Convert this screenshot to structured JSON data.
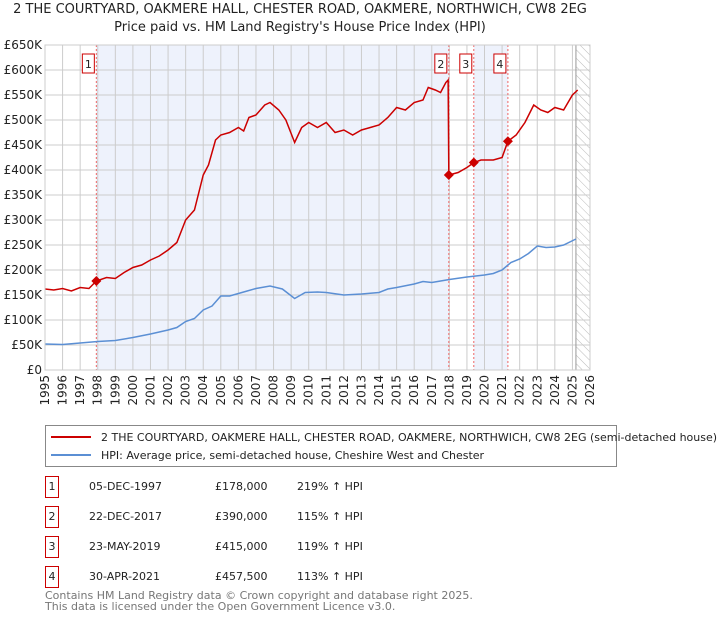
{
  "title_line1": "2 THE COURTYARD, OAKMERE HALL, CHESTER ROAD, OAKMERE, NORTHWICH, CW8 2EG",
  "title_line2": "Price paid vs. HM Land Registry's House Price Index (HPI)",
  "colors": {
    "price": "#cc0000",
    "hpi": "#5b8fd4",
    "shade": "#eef2fc",
    "grid": "#cccccc"
  },
  "chart_data": {
    "type": "line",
    "xlim": [
      1995,
      2026
    ],
    "ylim": [
      0,
      650000
    ],
    "x_ticks": [
      1995,
      1996,
      1997,
      1998,
      1999,
      2000,
      2001,
      2002,
      2003,
      2004,
      2005,
      2006,
      2007,
      2008,
      2009,
      2010,
      2011,
      2012,
      2013,
      2014,
      2015,
      2016,
      2017,
      2018,
      2019,
      2020,
      2021,
      2022,
      2023,
      2024,
      2025,
      2026
    ],
    "y_ticks": [
      {
        "v": 0,
        "label": "£0"
      },
      {
        "v": 50000,
        "label": "£50K"
      },
      {
        "v": 100000,
        "label": "£100K"
      },
      {
        "v": 150000,
        "label": "£150K"
      },
      {
        "v": 200000,
        "label": "£200K"
      },
      {
        "v": 250000,
        "label": "£250K"
      },
      {
        "v": 300000,
        "label": "£300K"
      },
      {
        "v": 350000,
        "label": "£350K"
      },
      {
        "v": 400000,
        "label": "£400K"
      },
      {
        "v": 450000,
        "label": "£450K"
      },
      {
        "v": 500000,
        "label": "£500K"
      },
      {
        "v": 550000,
        "label": "£550K"
      },
      {
        "v": 600000,
        "label": "£600K"
      },
      {
        "v": 650000,
        "label": "£650K"
      }
    ],
    "grid": true,
    "forecast_from": 2025.2,
    "series": [
      {
        "name": "2 THE COURTYARD, OAKMERE HALL, CHESTER ROAD, OAKMERE, NORTHWICH, CW8 2EG (semi-detached house)",
        "key": "price",
        "points": [
          [
            1995,
            162000
          ],
          [
            1995.5,
            160000
          ],
          [
            1996,
            163000
          ],
          [
            1996.5,
            158000
          ],
          [
            1997,
            165000
          ],
          [
            1997.5,
            163000
          ],
          [
            1997.92,
            178000
          ],
          [
            1998.5,
            185000
          ],
          [
            1999,
            183000
          ],
          [
            1999.5,
            195000
          ],
          [
            2000,
            205000
          ],
          [
            2000.5,
            210000
          ],
          [
            2001,
            220000
          ],
          [
            2001.5,
            228000
          ],
          [
            2002,
            240000
          ],
          [
            2002.5,
            255000
          ],
          [
            2003,
            300000
          ],
          [
            2003.5,
            320000
          ],
          [
            2004,
            390000
          ],
          [
            2004.3,
            410000
          ],
          [
            2004.7,
            460000
          ],
          [
            2005,
            470000
          ],
          [
            2005.5,
            475000
          ],
          [
            2006,
            485000
          ],
          [
            2006.3,
            478000
          ],
          [
            2006.6,
            505000
          ],
          [
            2007,
            510000
          ],
          [
            2007.5,
            530000
          ],
          [
            2007.8,
            535000
          ],
          [
            2008.3,
            520000
          ],
          [
            2008.7,
            500000
          ],
          [
            2009.2,
            455000
          ],
          [
            2009.6,
            485000
          ],
          [
            2010,
            495000
          ],
          [
            2010.5,
            485000
          ],
          [
            2011,
            495000
          ],
          [
            2011.5,
            475000
          ],
          [
            2012,
            480000
          ],
          [
            2012.5,
            470000
          ],
          [
            2013,
            480000
          ],
          [
            2013.5,
            485000
          ],
          [
            2014,
            490000
          ],
          [
            2014.5,
            505000
          ],
          [
            2015,
            525000
          ],
          [
            2015.5,
            520000
          ],
          [
            2016,
            535000
          ],
          [
            2016.5,
            540000
          ],
          [
            2016.8,
            565000
          ],
          [
            2017.2,
            560000
          ],
          [
            2017.5,
            555000
          ],
          [
            2017.8,
            575000
          ],
          [
            2017.93,
            580000
          ],
          [
            2017.97,
            390000
          ],
          [
            2018.5,
            395000
          ],
          [
            2019,
            405000
          ],
          [
            2019.4,
            415000
          ],
          [
            2019.8,
            420000
          ],
          [
            2020.5,
            420000
          ],
          [
            2021,
            425000
          ],
          [
            2021.33,
            457500
          ],
          [
            2021.8,
            470000
          ],
          [
            2022.3,
            495000
          ],
          [
            2022.8,
            530000
          ],
          [
            2023.2,
            520000
          ],
          [
            2023.6,
            515000
          ],
          [
            2024,
            525000
          ],
          [
            2024.5,
            520000
          ],
          [
            2025,
            550000
          ],
          [
            2025.3,
            560000
          ]
        ]
      },
      {
        "name": "HPI: Average price, semi-detached house, Cheshire West and Chester",
        "key": "hpi",
        "points": [
          [
            1995,
            52000
          ],
          [
            1996,
            51000
          ],
          [
            1997,
            54000
          ],
          [
            1998,
            57000
          ],
          [
            1999,
            59000
          ],
          [
            2000,
            65000
          ],
          [
            2001,
            72000
          ],
          [
            2002,
            80000
          ],
          [
            2002.5,
            85000
          ],
          [
            2003,
            97000
          ],
          [
            2003.5,
            103000
          ],
          [
            2004,
            120000
          ],
          [
            2004.5,
            128000
          ],
          [
            2005,
            148000
          ],
          [
            2005.5,
            148000
          ],
          [
            2006,
            153000
          ],
          [
            2006.5,
            158000
          ],
          [
            2007,
            163000
          ],
          [
            2007.8,
            168000
          ],
          [
            2008.5,
            162000
          ],
          [
            2009.2,
            143000
          ],
          [
            2009.8,
            155000
          ],
          [
            2010.5,
            156000
          ],
          [
            2011,
            155000
          ],
          [
            2012,
            150000
          ],
          [
            2013,
            152000
          ],
          [
            2014,
            155000
          ],
          [
            2014.5,
            162000
          ],
          [
            2015,
            165000
          ],
          [
            2016,
            172000
          ],
          [
            2016.5,
            177000
          ],
          [
            2017,
            175000
          ],
          [
            2017.5,
            178000
          ],
          [
            2018,
            181000
          ],
          [
            2019,
            186000
          ],
          [
            2020,
            190000
          ],
          [
            2020.5,
            193000
          ],
          [
            2021,
            200000
          ],
          [
            2021.5,
            215000
          ],
          [
            2022,
            222000
          ],
          [
            2022.5,
            233000
          ],
          [
            2023,
            248000
          ],
          [
            2023.5,
            245000
          ],
          [
            2024,
            246000
          ],
          [
            2024.5,
            250000
          ],
          [
            2025.2,
            262000
          ]
        ]
      }
    ],
    "sales": [
      {
        "n": "1",
        "x": 1997.92,
        "date": "05-DEC-1997",
        "price": 178000,
        "price_label": "£178,000",
        "hpi_label": "219% ↑ HPI"
      },
      {
        "n": "2",
        "x": 2017.97,
        "date": "22-DEC-2017",
        "price": 390000,
        "price_label": "£390,000",
        "hpi_label": "115% ↑ HPI"
      },
      {
        "n": "3",
        "x": 2019.39,
        "date": "23-MAY-2019",
        "price": 415000,
        "price_label": "£415,000",
        "hpi_label": "119% ↑ HPI"
      },
      {
        "n": "4",
        "x": 2021.33,
        "date": "30-APR-2021",
        "price": 457500,
        "price_label": "£457,500",
        "hpi_label": "113% ↑ HPI"
      }
    ]
  },
  "legend": {
    "price": "2 THE COURTYARD, OAKMERE HALL, CHESTER ROAD, OAKMERE, NORTHWICH, CW8 2EG (semi-detached house)",
    "hpi": "HPI: Average price, semi-detached house, Cheshire West and Chester"
  },
  "footer": {
    "line1": "Contains HM Land Registry data © Crown copyright and database right 2025.",
    "line2": "This data is licensed under the Open Government Licence v3.0."
  }
}
